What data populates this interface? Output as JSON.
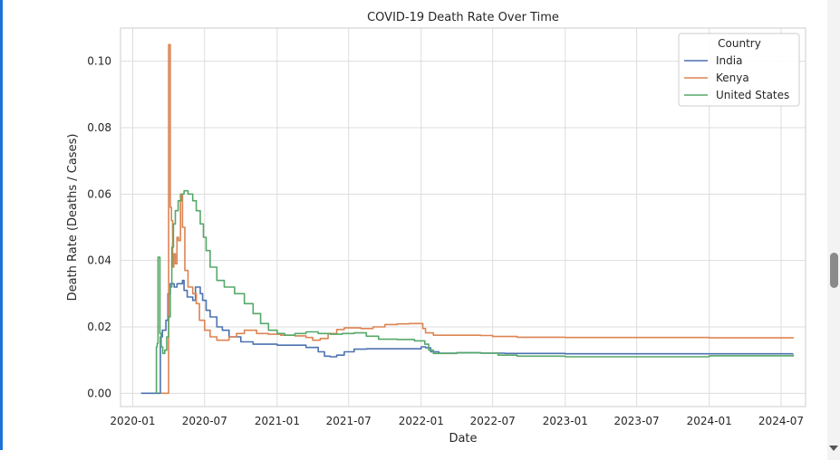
{
  "chart_data": {
    "type": "line",
    "title": "COVID-19 Death Rate Over Time",
    "xlabel": "Date",
    "ylabel": "Death Rate (Deaths / Cases)",
    "xlim": [
      "2019-12-01",
      "2024-09-01"
    ],
    "ylim": [
      -0.004,
      0.11
    ],
    "x_ticks": [
      "2020-01",
      "2020-07",
      "2021-01",
      "2021-07",
      "2022-01",
      "2022-07",
      "2023-01",
      "2023-07",
      "2024-01",
      "2024-07"
    ],
    "y_ticks": [
      "0.00",
      "0.02",
      "0.04",
      "0.06",
      "0.08",
      "0.10"
    ],
    "y_tick_values": [
      0,
      0.02,
      0.04,
      0.06,
      0.08,
      0.1
    ],
    "grid": true,
    "legend": {
      "title": "Country",
      "position": "top-right"
    },
    "series": [
      {
        "name": "India",
        "color": "#4c72b0",
        "points": [
          [
            "2020-01-22",
            0
          ],
          [
            "2020-03-10",
            0
          ],
          [
            "2020-03-11",
            0.017
          ],
          [
            "2020-03-16",
            0.019
          ],
          [
            "2020-03-25",
            0.022
          ],
          [
            "2020-03-30",
            0.03
          ],
          [
            "2020-04-05",
            0.033
          ],
          [
            "2020-04-15",
            0.032
          ],
          [
            "2020-04-22",
            0.033
          ],
          [
            "2020-05-01",
            0.033
          ],
          [
            "2020-05-06",
            0.034
          ],
          [
            "2020-05-10",
            0.031
          ],
          [
            "2020-05-18",
            0.029
          ],
          [
            "2020-06-01",
            0.028
          ],
          [
            "2020-06-08",
            0.032
          ],
          [
            "2020-06-15",
            0.032
          ],
          [
            "2020-06-20",
            0.03
          ],
          [
            "2020-06-26",
            0.028
          ],
          [
            "2020-07-05",
            0.025
          ],
          [
            "2020-07-15",
            0.023
          ],
          [
            "2020-08-01",
            0.02
          ],
          [
            "2020-08-15",
            0.019
          ],
          [
            "2020-09-01",
            0.017
          ],
          [
            "2020-10-01",
            0.0155
          ],
          [
            "2020-11-01",
            0.0148
          ],
          [
            "2021-01-01",
            0.0145
          ],
          [
            "2021-03-15",
            0.0138
          ],
          [
            "2021-04-15",
            0.0125
          ],
          [
            "2021-05-01",
            0.0112
          ],
          [
            "2021-05-15",
            0.011
          ],
          [
            "2021-06-01",
            0.0115
          ],
          [
            "2021-06-20",
            0.0125
          ],
          [
            "2021-07-15",
            0.0133
          ],
          [
            "2021-08-15",
            0.0134
          ],
          [
            "2021-10-01",
            0.0134
          ],
          [
            "2022-01-01",
            0.014
          ],
          [
            "2022-01-12",
            0.0137
          ],
          [
            "2022-01-25",
            0.0125
          ],
          [
            "2022-02-15",
            0.0121
          ],
          [
            "2022-04-01",
            0.0122
          ],
          [
            "2022-06-01",
            0.0121
          ],
          [
            "2022-08-01",
            0.012
          ],
          [
            "2023-01-01",
            0.0119
          ],
          [
            "2024-01-01",
            0.0119
          ],
          [
            "2024-08-01",
            0.0119
          ]
        ]
      },
      {
        "name": "Kenya",
        "color": "#dd8452",
        "points": [
          [
            "2020-03-13",
            0
          ],
          [
            "2020-03-31",
            0
          ],
          [
            "2020-04-01",
            0.105
          ],
          [
            "2020-04-04",
            0.105
          ],
          [
            "2020-04-05",
            0.056
          ],
          [
            "2020-04-08",
            0.052
          ],
          [
            "2020-04-11",
            0.038
          ],
          [
            "2020-04-14",
            0.042
          ],
          [
            "2020-04-18",
            0.039
          ],
          [
            "2020-04-22",
            0.047
          ],
          [
            "2020-04-26",
            0.046
          ],
          [
            "2020-05-01",
            0.06
          ],
          [
            "2020-05-06",
            0.05
          ],
          [
            "2020-05-12",
            0.037
          ],
          [
            "2020-05-20",
            0.032
          ],
          [
            "2020-06-01",
            0.03
          ],
          [
            "2020-06-10",
            0.027
          ],
          [
            "2020-06-18",
            0.022
          ],
          [
            "2020-07-01",
            0.019
          ],
          [
            "2020-07-15",
            0.017
          ],
          [
            "2020-08-01",
            0.016
          ],
          [
            "2020-08-20",
            0.016
          ],
          [
            "2020-09-01",
            0.017
          ],
          [
            "2020-09-20",
            0.018
          ],
          [
            "2020-10-10",
            0.019
          ],
          [
            "2020-11-10",
            0.018
          ],
          [
            "2020-12-10",
            0.0178
          ],
          [
            "2021-01-10",
            0.0175
          ],
          [
            "2021-02-15",
            0.0173
          ],
          [
            "2021-03-15",
            0.0168
          ],
          [
            "2021-04-01",
            0.016
          ],
          [
            "2021-04-20",
            0.0165
          ],
          [
            "2021-05-10",
            0.018
          ],
          [
            "2021-06-01",
            0.0192
          ],
          [
            "2021-06-20",
            0.0197
          ],
          [
            "2021-08-01",
            0.0195
          ],
          [
            "2021-09-01",
            0.02
          ],
          [
            "2021-10-01",
            0.0207
          ],
          [
            "2021-11-01",
            0.0209
          ],
          [
            "2021-12-01",
            0.021
          ],
          [
            "2021-12-31",
            0.021
          ],
          [
            "2022-01-05",
            0.0195
          ],
          [
            "2022-01-12",
            0.0182
          ],
          [
            "2022-02-01",
            0.0175
          ],
          [
            "2022-06-01",
            0.0174
          ],
          [
            "2022-07-01",
            0.0171
          ],
          [
            "2022-09-01",
            0.0169
          ],
          [
            "2023-01-01",
            0.0168
          ],
          [
            "2024-01-01",
            0.0167
          ],
          [
            "2024-08-01",
            0.0166
          ]
        ]
      },
      {
        "name": "United States",
        "color": "#55a868",
        "points": [
          [
            "2020-02-29",
            0
          ],
          [
            "2020-03-01",
            0.014
          ],
          [
            "2020-03-03",
            0.015
          ],
          [
            "2020-03-05",
            0.041
          ],
          [
            "2020-03-08",
            0.041
          ],
          [
            "2020-03-10",
            0.018
          ],
          [
            "2020-03-13",
            0.014
          ],
          [
            "2020-03-17",
            0.012
          ],
          [
            "2020-03-22",
            0.013
          ],
          [
            "2020-03-27",
            0.017
          ],
          [
            "2020-04-01",
            0.023
          ],
          [
            "2020-04-05",
            0.032
          ],
          [
            "2020-04-09",
            0.044
          ],
          [
            "2020-04-13",
            0.051
          ],
          [
            "2020-04-18",
            0.055
          ],
          [
            "2020-04-25",
            0.058
          ],
          [
            "2020-05-03",
            0.06
          ],
          [
            "2020-05-10",
            0.061
          ],
          [
            "2020-05-20",
            0.06
          ],
          [
            "2020-06-01",
            0.058
          ],
          [
            "2020-06-10",
            0.055
          ],
          [
            "2020-06-20",
            0.051
          ],
          [
            "2020-06-28",
            0.047
          ],
          [
            "2020-07-05",
            0.043
          ],
          [
            "2020-07-15",
            0.038
          ],
          [
            "2020-08-01",
            0.034
          ],
          [
            "2020-08-20",
            0.032
          ],
          [
            "2020-09-15",
            0.03
          ],
          [
            "2020-10-10",
            0.027
          ],
          [
            "2020-11-01",
            0.024
          ],
          [
            "2020-11-20",
            0.021
          ],
          [
            "2020-12-10",
            0.019
          ],
          [
            "2021-01-01",
            0.018
          ],
          [
            "2021-01-20",
            0.0175
          ],
          [
            "2021-02-15",
            0.018
          ],
          [
            "2021-03-15",
            0.0185
          ],
          [
            "2021-04-15",
            0.018
          ],
          [
            "2021-05-15",
            0.0178
          ],
          [
            "2021-06-15",
            0.018
          ],
          [
            "2021-07-15",
            0.0182
          ],
          [
            "2021-08-15",
            0.0172
          ],
          [
            "2021-09-15",
            0.0163
          ],
          [
            "2021-11-01",
            0.0162
          ],
          [
            "2021-12-15",
            0.0158
          ],
          [
            "2022-01-10",
            0.0148
          ],
          [
            "2022-01-20",
            0.013
          ],
          [
            "2022-02-01",
            0.012
          ],
          [
            "2022-04-01",
            0.0122
          ],
          [
            "2022-06-01",
            0.0121
          ],
          [
            "2022-07-15",
            0.0115
          ],
          [
            "2022-09-01",
            0.0112
          ],
          [
            "2023-01-01",
            0.011
          ],
          [
            "2023-07-01",
            0.011
          ],
          [
            "2024-01-01",
            0.0113
          ],
          [
            "2024-08-01",
            0.0116
          ]
        ]
      }
    ]
  }
}
